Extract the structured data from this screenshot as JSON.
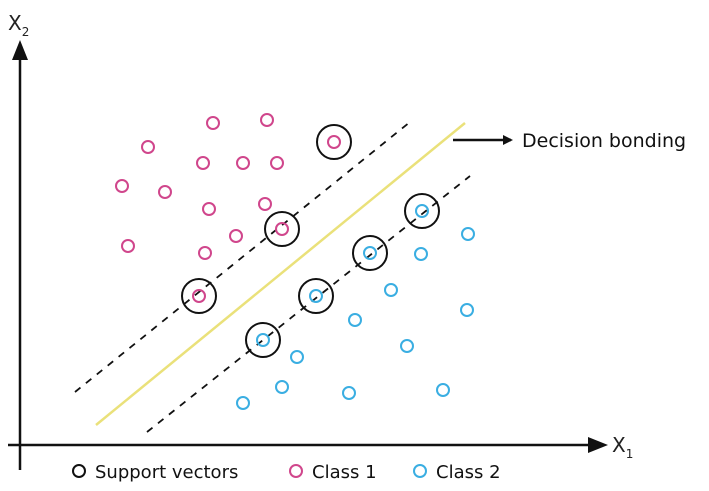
{
  "axes": {
    "x_label": "X",
    "x_sub": "1",
    "y_label": "X",
    "y_sub": "2"
  },
  "annotation": {
    "text": "Decision bonding"
  },
  "legend": {
    "support": "Support vectors",
    "class1": "Class 1",
    "class2": "Class 2"
  },
  "colors": {
    "class1": "#d0468c",
    "class2": "#3aaee2",
    "support": "#111111",
    "decision": "#eae17a",
    "axis": "#111111"
  },
  "icons": {
    "arrow": "arrow-right-icon",
    "legend_support": "hollow-circle-icon",
    "legend_class1": "hollow-circle-icon",
    "legend_class2": "hollow-circle-icon"
  }
}
